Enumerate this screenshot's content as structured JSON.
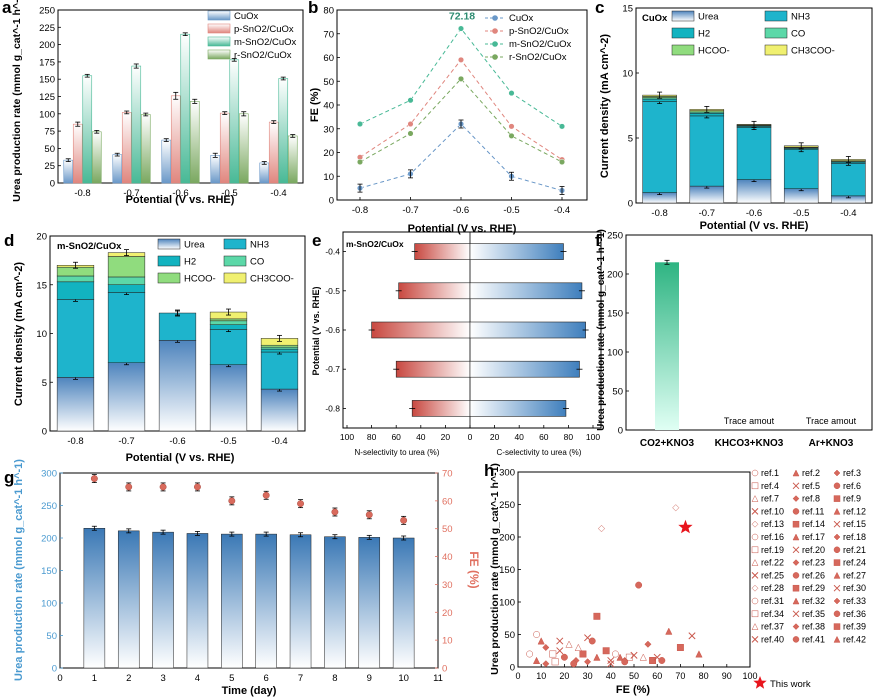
{
  "colors": {
    "cuox": "#6a98c8",
    "psno2": "#e0867e",
    "msno2": "#48b996",
    "rsno2": "#7aa860",
    "urea": "#9dbcdc",
    "nh3": "#1eb4cc",
    "h2": "#12b3c0",
    "co": "#5cd8a8",
    "hcoo": "#90dc7e",
    "ch3coo": "#f0f070",
    "red": "#c84840",
    "blue": "#4a86c0",
    "fe_point": "#d96a5c",
    "axis_left_g": "#4a9ad0",
    "axis_right_g": "#e07060"
  },
  "chart_data": [
    {
      "panel": "a",
      "type": "bar",
      "ylabel": "Urea production rate (mmol g_cat^-1 h^-1)",
      "xlabel": "Potential (V vs. RHE)",
      "categories": [
        "-0.8",
        "-0.7",
        "-0.6",
        "-0.5",
        "-0.4"
      ],
      "ylim": [
        0,
        250
      ],
      "yticks": [
        "0",
        "25",
        "50",
        "75",
        "100",
        "125",
        "150",
        "175",
        "200",
        "225",
        "250"
      ],
      "series": [
        {
          "name": "CuOx",
          "values": [
            33,
            41,
            62,
            40,
            29
          ],
          "err": [
            2,
            2,
            2,
            3,
            2
          ]
        },
        {
          "name": "p-SnO2/CuOx",
          "values": [
            85,
            102,
            126,
            101,
            88
          ],
          "err": [
            3,
            2,
            5,
            2,
            2
          ]
        },
        {
          "name": "m-SnO2/CuOx",
          "values": [
            155,
            169,
            215,
            178,
            151
          ],
          "err": [
            2,
            3,
            2,
            2,
            2
          ]
        },
        {
          "name": "r-SnO2/CuOx",
          "values": [
            74,
            99,
            118,
            100,
            68
          ],
          "err": [
            2,
            2,
            3,
            3,
            2
          ]
        }
      ]
    },
    {
      "panel": "b",
      "type": "line",
      "ylabel": "FE (%)",
      "xlabel": "Potential (V vs. RHE)",
      "x": [
        "-0.8",
        "-0.7",
        "-0.6",
        "-0.5",
        "-0.4"
      ],
      "ylim": [
        0,
        80
      ],
      "yticks": [
        "0",
        "10",
        "20",
        "30",
        "40",
        "50",
        "60",
        "70",
        "80"
      ],
      "annotation": "72.18",
      "series": [
        {
          "name": "CuOx",
          "values": [
            5,
            11,
            32,
            10,
            4
          ]
        },
        {
          "name": "p-SnO2/CuOx",
          "values": [
            18,
            32,
            59,
            31,
            17
          ]
        },
        {
          "name": "m-SnO2/CuOx",
          "values": [
            32,
            42,
            72.18,
            45,
            31
          ]
        },
        {
          "name": "r-SnO2/CuOx",
          "values": [
            16,
            28,
            51,
            27,
            16
          ]
        }
      ]
    },
    {
      "panel": "c",
      "type": "bar",
      "stacked": true,
      "title": "CuOx",
      "ylabel": "Current density (mA cm^-2)",
      "xlabel": "Potential (V vs. RHE)",
      "categories": [
        "-0.8",
        "-0.7",
        "-0.6",
        "-0.5",
        "-0.4"
      ],
      "ylim": [
        0,
        15
      ],
      "yticks": [
        "0",
        "5",
        "10",
        "15"
      ],
      "series": [
        {
          "name": "Urea",
          "values": [
            0.8,
            1.3,
            1.8,
            1.1,
            0.55
          ]
        },
        {
          "name": "NH3",
          "values": [
            7.0,
            5.4,
            4.0,
            3.0,
            2.5
          ]
        },
        {
          "name": "H2",
          "values": [
            0.2,
            0.2,
            0.1,
            0.1,
            0.1
          ]
        },
        {
          "name": "CO",
          "values": [
            0.1,
            0.1,
            0.05,
            0.05,
            0.05
          ]
        },
        {
          "name": "HCOO-",
          "values": [
            0.1,
            0.1,
            0.05,
            0.05,
            0.05
          ]
        },
        {
          "name": "CH3COO-",
          "values": [
            0.1,
            0.1,
            0.05,
            0.1,
            0.1
          ]
        }
      ],
      "legend_labels": [
        "Urea",
        "NH3",
        "H2",
        "CO",
        "HCOO-",
        "CH3COO-"
      ]
    },
    {
      "panel": "d",
      "type": "bar",
      "stacked": true,
      "title": "m-SnO2/CuOx",
      "ylabel": "Current density (mA cm^-2)",
      "xlabel": "Potential (V vs. RHE)",
      "categories": [
        "-0.8",
        "-0.7",
        "-0.6",
        "-0.5",
        "-0.4"
      ],
      "ylim": [
        0,
        20
      ],
      "yticks": [
        "0",
        "5",
        "10",
        "15",
        "20"
      ],
      "series": [
        {
          "name": "Urea",
          "values": [
            5.5,
            7.0,
            9.3,
            6.8,
            4.3
          ]
        },
        {
          "name": "NH3",
          "values": [
            8.0,
            7.2,
            2.8,
            3.6,
            3.8
          ]
        },
        {
          "name": "H2",
          "values": [
            1.8,
            0.8,
            0.0,
            0.5,
            0.3
          ]
        },
        {
          "name": "CO",
          "values": [
            0.6,
            0.8,
            0.0,
            0.4,
            0.2
          ]
        },
        {
          "name": "HCOO-",
          "values": [
            0.9,
            2.1,
            0.0,
            0.2,
            0.2
          ]
        },
        {
          "name": "CH3COO-",
          "values": [
            0.2,
            0.4,
            0.0,
            0.7,
            0.7
          ]
        }
      ],
      "legend_labels": [
        "Urea",
        "NH3",
        "H2",
        "CO",
        "HCOO-",
        "CH3COO-"
      ]
    },
    {
      "panel": "e",
      "type": "bar",
      "orientation": "horizontal",
      "title": "m-SnO2/CuOx",
      "ylabel": "Potential (V vs. RHE)",
      "xlabel_left": "N-selectivity to urea (%)",
      "xlabel_right": "C-selectivity to urea (%)",
      "categories": [
        "-0.4",
        "-0.5",
        "-0.6",
        "-0.7",
        "-0.8"
      ],
      "xticks": [
        "100",
        "80",
        "60",
        "40",
        "20",
        "0",
        "20",
        "40",
        "60",
        "80",
        "100"
      ],
      "n_selectivity": [
        45,
        58,
        80,
        60,
        47
      ],
      "c_selectivity": [
        76,
        91,
        94,
        89,
        78
      ]
    },
    {
      "panel": "f",
      "type": "bar",
      "ylabel": "Urea production rate (mmol g_cat^-1 h^-1)",
      "categories": [
        "CO2+KNO3",
        "KHCO3+KNO3",
        "Ar+KNO3"
      ],
      "values": [
        215,
        0,
        0
      ],
      "annotations": [
        "Trace amout",
        "Trace amout"
      ],
      "ylim": [
        0,
        250
      ],
      "yticks": [
        "0",
        "50",
        "100",
        "150",
        "200",
        "250"
      ]
    },
    {
      "panel": "g",
      "type": "bar",
      "xlabel": "Time (day)",
      "ylabel_left": "Urea production rate (mmol g_cat^-1 h^-1)",
      "ylabel_right": "FE (%)",
      "x": [
        1,
        2,
        3,
        4,
        5,
        6,
        7,
        8,
        9,
        10
      ],
      "xticks": [
        "0",
        "1",
        "2",
        "3",
        "4",
        "5",
        "6",
        "7",
        "8",
        "9",
        "10",
        "11"
      ],
      "rate": [
        215,
        211,
        209,
        207,
        206,
        206,
        205,
        202,
        201,
        200
      ],
      "fe": [
        68,
        65,
        65,
        65,
        60,
        62,
        59,
        56,
        55,
        53
      ],
      "ylim_left": [
        0,
        300
      ],
      "ylim_right": [
        0,
        70
      ],
      "yticks_left": [
        "0",
        "50",
        "100",
        "150",
        "200",
        "250",
        "300"
      ],
      "yticks_right": [
        "0",
        "10",
        "20",
        "30",
        "40",
        "50",
        "60",
        "70"
      ]
    },
    {
      "panel": "h",
      "type": "scatter",
      "xlabel": "FE (%)",
      "ylabel": "Urea production rate (mmol g_cat^-1 h^-1)",
      "xlim": [
        0,
        100
      ],
      "ylim": [
        0,
        300
      ],
      "xticks": [
        "0",
        "10",
        "20",
        "30",
        "40",
        "50",
        "60",
        "70",
        "80",
        "90",
        "100"
      ],
      "yticks": [
        "0",
        "50",
        "100",
        "150",
        "200",
        "250",
        "300"
      ],
      "this_work": [
        72.18,
        215
      ],
      "refs": [
        [
          8,
          50
        ],
        [
          10,
          40
        ],
        [
          12,
          30
        ],
        [
          15,
          20
        ],
        [
          18,
          25
        ],
        [
          20,
          15
        ],
        [
          22,
          35
        ],
        [
          25,
          10
        ],
        [
          28,
          20
        ],
        [
          30,
          45
        ],
        [
          32,
          40
        ],
        [
          34,
          15
        ],
        [
          36,
          213
        ],
        [
          38,
          25
        ],
        [
          40,
          10
        ],
        [
          42,
          20
        ],
        [
          44,
          15
        ],
        [
          46,
          10
        ],
        [
          48,
          15
        ],
        [
          50,
          18
        ],
        [
          52,
          126
        ],
        [
          54,
          15
        ],
        [
          56,
          35
        ],
        [
          58,
          10
        ],
        [
          60,
          15
        ],
        [
          62,
          10
        ],
        [
          65,
          55
        ],
        [
          68,
          245
        ],
        [
          70,
          30
        ],
        [
          75,
          48
        ],
        [
          5,
          20
        ],
        [
          8,
          10
        ],
        [
          12,
          5
        ],
        [
          16,
          8
        ],
        [
          18,
          40
        ],
        [
          24,
          5
        ],
        [
          26,
          30
        ],
        [
          30,
          8
        ],
        [
          34,
          78
        ],
        [
          40,
          5
        ],
        [
          46,
          8
        ],
        [
          78,
          20
        ]
      ],
      "legend_labels": [
        "ref.1",
        "ref.2",
        "ref.3",
        "ref.4",
        "ref.5",
        "ref.6",
        "ref.7",
        "ref.8",
        "ref.9",
        "ref.10",
        "ref.11",
        "ref.12",
        "ref.13",
        "ref.14",
        "ref.15",
        "ref.16",
        "ref.17",
        "ref.18",
        "ref.19",
        "ref.20",
        "ref.21",
        "ref.22",
        "ref.23",
        "ref.24",
        "ref.25",
        "ref.26",
        "ref.27",
        "ref.28",
        "ref.29",
        "ref.30",
        "ref.31",
        "ref.32",
        "ref.33",
        "ref.34",
        "ref.35",
        "ref.36",
        "ref.37",
        "ref.38",
        "ref.39",
        "ref.40",
        "ref.41",
        "ref.42"
      ],
      "this_work_label": "This work"
    }
  ],
  "panel_labels": [
    "a",
    "b",
    "c",
    "d",
    "e",
    "f",
    "g",
    "h"
  ]
}
